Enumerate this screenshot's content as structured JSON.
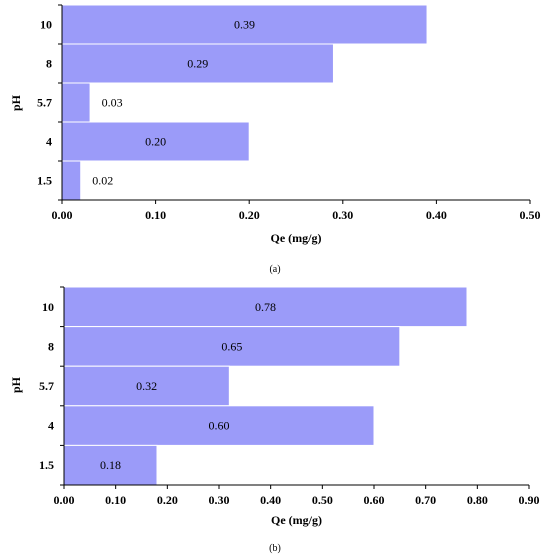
{
  "colors": {
    "bar": "#9b9bf9",
    "axis": "#000000"
  },
  "chart_data": [
    {
      "type": "bar",
      "orientation": "horizontal",
      "caption": "(a)",
      "categories": [
        "10",
        "8",
        "5.7",
        "4",
        "1.5"
      ],
      "values": [
        0.39,
        0.29,
        0.03,
        0.2,
        0.02
      ],
      "data_labels": [
        "0.39",
        "0.29",
        "0.03",
        "0.20",
        "0.02"
      ],
      "xlabel": "Qe (mg/g)",
      "ylabel": "pH",
      "xlim": [
        0,
        0.5
      ],
      "xticks": [
        "0.00",
        "0.10",
        "0.20",
        "0.30",
        "0.40",
        "0.50"
      ],
      "grid": false
    },
    {
      "type": "bar",
      "orientation": "horizontal",
      "caption": "(b)",
      "categories": [
        "10",
        "8",
        "5.7",
        "4",
        "1.5"
      ],
      "values": [
        0.78,
        0.65,
        0.32,
        0.6,
        0.18
      ],
      "data_labels": [
        "0.78",
        "0.65",
        "0.32",
        "0.60",
        "0.18"
      ],
      "xlabel": "Qe (mg/g)",
      "ylabel": "pH",
      "xlim": [
        0,
        0.9
      ],
      "xticks": [
        "0.00",
        "0.10",
        "0.20",
        "0.30",
        "0.40",
        "0.50",
        "0.60",
        "0.70",
        "0.80",
        "0.90"
      ],
      "grid": false
    }
  ]
}
